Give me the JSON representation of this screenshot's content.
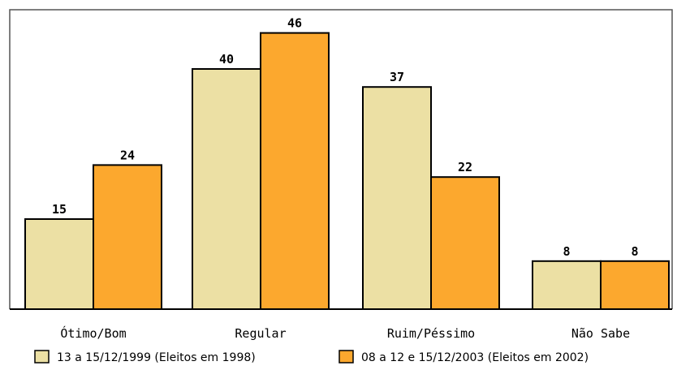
{
  "chart_data": {
    "type": "bar",
    "categories": [
      "Ótimo/Bom",
      "Regular",
      "Ruim/Péssimo",
      "Não Sabe"
    ],
    "series": [
      {
        "name": "13 a 15/12/1999 (Eleitos em 1998)",
        "values": [
          15,
          40,
          37,
          8
        ],
        "color": "#ece0a4"
      },
      {
        "name": "08 a 12 e 15/12/2003 (Eleitos em 2002)",
        "values": [
          24,
          46,
          22,
          8
        ],
        "color": "#fca82e"
      }
    ],
    "ylim": [
      0,
      50
    ],
    "grid": false,
    "legend_position": "bottom",
    "data_labels": true
  }
}
